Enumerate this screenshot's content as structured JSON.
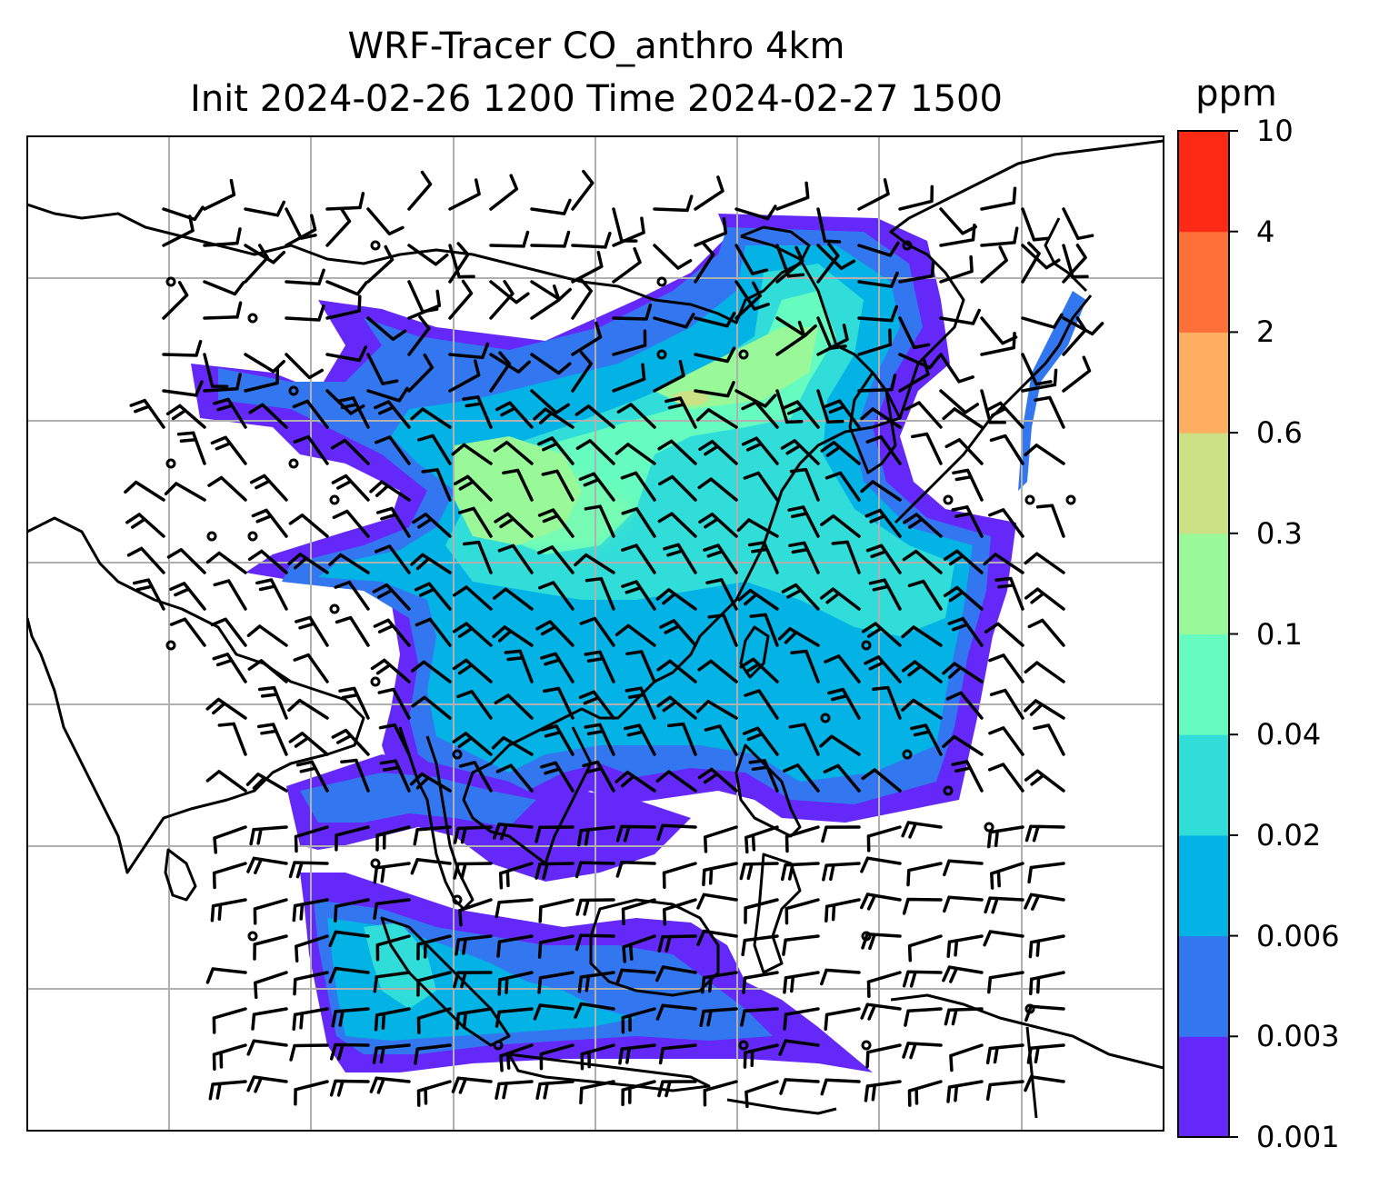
{
  "title": {
    "line1": "WRF-Tracer CO_anthro 4km",
    "line2": "Init 2024-02-26 1200 Time 2024-02-27 1500"
  },
  "colorbar": {
    "unit": "ppm",
    "levels": [
      "0.001",
      "0.003",
      "0.006",
      "0.02",
      "0.04",
      "0.1",
      "0.3",
      "0.6",
      "2",
      "4",
      "10"
    ],
    "colors": [
      "#6428f8",
      "#3377f0",
      "#03b3e6",
      "#30ddd8",
      "#66fcbf",
      "#99f999",
      "#cce085",
      "#fdae61",
      "#ff7038",
      "#ff2a16"
    ]
  },
  "map": {
    "gridlines": true,
    "colors": {
      "land_outline": "#000000",
      "grid": "#b0b0b0",
      "frame": "#000000"
    }
  }
}
